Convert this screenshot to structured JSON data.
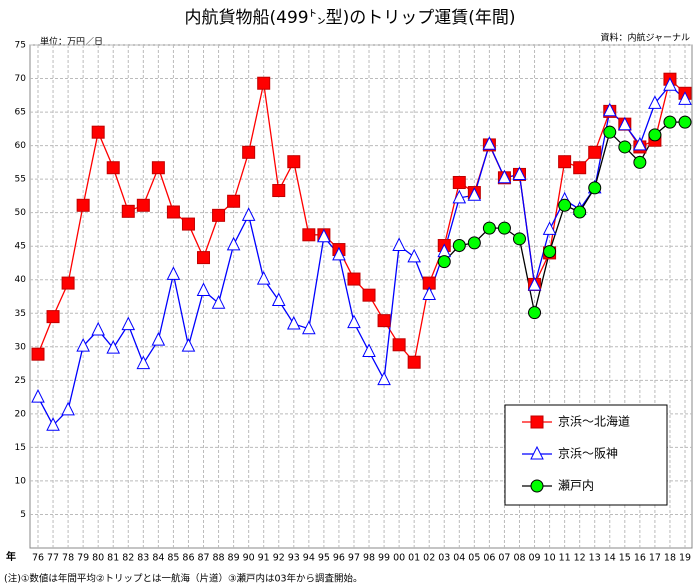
{
  "chart_data": {
    "type": "line",
    "title": "内航貨物船(499㌧型)のトリップ運賃(年間)",
    "unit_label": "単位：万円／日",
    "source": "資料：内航ジャーナル",
    "x_label": "年",
    "note": "(注)①数値は年間平均②トリップとは一航海（片道）③瀬戸内は03年から調査開始。",
    "categories": [
      "76",
      "77",
      "78",
      "79",
      "80",
      "81",
      "82",
      "83",
      "84",
      "85",
      "86",
      "87",
      "88",
      "89",
      "90",
      "91",
      "92",
      "93",
      "94",
      "95",
      "96",
      "97",
      "98",
      "99",
      "00",
      "01",
      "02",
      "03",
      "04",
      "05",
      "06",
      "07",
      "08",
      "09",
      "10",
      "11",
      "12",
      "13",
      "14",
      "15",
      "16",
      "17",
      "18",
      "19"
    ],
    "series": [
      {
        "name": "京浜～北海道",
        "color": "#ff0000",
        "marker": "square",
        "values": [
          28.9,
          34.5,
          39.5,
          51.1,
          62.0,
          56.7,
          50.2,
          51.1,
          56.7,
          50.1,
          48.3,
          43.3,
          49.6,
          51.7,
          59.0,
          69.3,
          53.3,
          57.6,
          46.7,
          46.7,
          44.5,
          40.1,
          37.7,
          33.9,
          30.3,
          27.7,
          39.5,
          45.1,
          54.5,
          53.0,
          60.1,
          55.2,
          55.7,
          39.3,
          44.0,
          57.6,
          56.7,
          59.0,
          65.1,
          63.2,
          59.8,
          60.8,
          69.9,
          67.8
        ]
      },
      {
        "name": "京浜～阪神",
        "color": "#0000ff",
        "marker": "triangle",
        "values": [
          22.5,
          18.3,
          20.6,
          30.1,
          32.5,
          29.8,
          33.3,
          27.5,
          31.0,
          40.8,
          30.1,
          38.4,
          36.5,
          45.2,
          49.6,
          40.1,
          36.9,
          33.4,
          32.7,
          46.4,
          43.7,
          33.6,
          29.3,
          25.1,
          45.1,
          43.4,
          37.8,
          44.2,
          52.2,
          52.6,
          60.2,
          55.2,
          55.7,
          39.2,
          47.5,
          51.9,
          50.5,
          53.7,
          65.2,
          63.1,
          60.1,
          66.3,
          69.0,
          66.9
        ]
      },
      {
        "name": "瀬戸内",
        "color": "#000000",
        "marker": "circle",
        "values": [
          null,
          null,
          null,
          null,
          null,
          null,
          null,
          null,
          null,
          null,
          null,
          null,
          null,
          null,
          null,
          null,
          null,
          null,
          null,
          null,
          null,
          null,
          null,
          null,
          null,
          null,
          null,
          42.7,
          45.1,
          45.5,
          47.7,
          47.7,
          46.1,
          35.1,
          44.2,
          51.1,
          50.1,
          53.7,
          62.0,
          59.8,
          57.5,
          61.6,
          63.5,
          63.5
        ]
      }
    ],
    "ylim": [
      0,
      75
    ],
    "yticks": [
      5,
      10,
      15,
      20,
      25,
      30,
      35,
      40,
      45,
      50,
      55,
      60,
      65,
      70,
      75
    ],
    "grid": true
  }
}
